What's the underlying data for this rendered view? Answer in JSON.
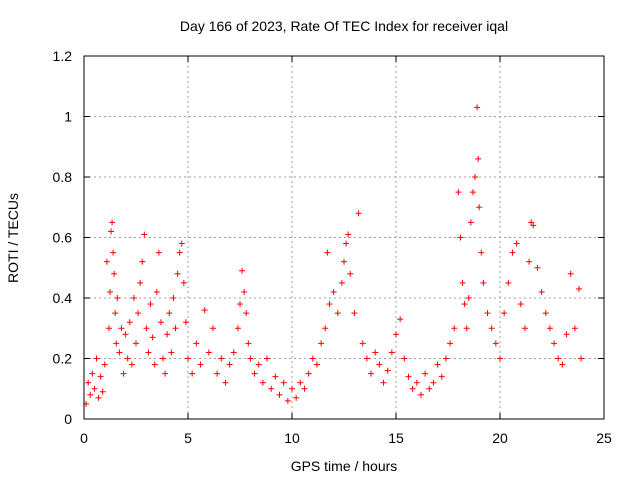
{
  "chart_data": {
    "type": "scatter",
    "title": "Day 166 of 2023, Rate Of TEC Index for receiver iqal",
    "xlabel": "GPS time / hours",
    "ylabel": "ROTI / TECUs",
    "xlim": [
      0,
      25
    ],
    "ylim": [
      0,
      1.2
    ],
    "xticks": [
      "0",
      "5",
      "10",
      "15",
      "20",
      "25"
    ],
    "yticks": [
      "0",
      "0.2",
      "0.4",
      "0.6",
      "0.8",
      "1",
      "1.2"
    ],
    "grid": true,
    "marker": "+",
    "color": "#ff0000",
    "points": [
      [
        0.1,
        0.05
      ],
      [
        0.2,
        0.12
      ],
      [
        0.3,
        0.08
      ],
      [
        0.4,
        0.15
      ],
      [
        0.5,
        0.1
      ],
      [
        0.6,
        0.2
      ],
      [
        0.7,
        0.07
      ],
      [
        0.8,
        0.14
      ],
      [
        0.9,
        0.09
      ],
      [
        1.0,
        0.18
      ],
      [
        1.1,
        0.52
      ],
      [
        1.2,
        0.3
      ],
      [
        1.25,
        0.42
      ],
      [
        1.3,
        0.62
      ],
      [
        1.35,
        0.65
      ],
      [
        1.4,
        0.55
      ],
      [
        1.45,
        0.48
      ],
      [
        1.5,
        0.35
      ],
      [
        1.55,
        0.25
      ],
      [
        1.6,
        0.4
      ],
      [
        1.7,
        0.22
      ],
      [
        1.8,
        0.3
      ],
      [
        1.9,
        0.15
      ],
      [
        2.0,
        0.28
      ],
      [
        2.1,
        0.2
      ],
      [
        2.2,
        0.32
      ],
      [
        2.3,
        0.18
      ],
      [
        2.4,
        0.4
      ],
      [
        2.5,
        0.25
      ],
      [
        2.6,
        0.35
      ],
      [
        2.7,
        0.45
      ],
      [
        2.8,
        0.52
      ],
      [
        2.9,
        0.61
      ],
      [
        3.0,
        0.3
      ],
      [
        3.1,
        0.22
      ],
      [
        3.2,
        0.38
      ],
      [
        3.3,
        0.27
      ],
      [
        3.4,
        0.18
      ],
      [
        3.5,
        0.42
      ],
      [
        3.6,
        0.55
      ],
      [
        3.7,
        0.32
      ],
      [
        3.8,
        0.2
      ],
      [
        3.9,
        0.15
      ],
      [
        4.0,
        0.28
      ],
      [
        4.1,
        0.35
      ],
      [
        4.2,
        0.22
      ],
      [
        4.3,
        0.4
      ],
      [
        4.4,
        0.3
      ],
      [
        4.5,
        0.48
      ],
      [
        4.6,
        0.55
      ],
      [
        4.7,
        0.58
      ],
      [
        4.8,
        0.45
      ],
      [
        4.9,
        0.32
      ],
      [
        5.0,
        0.2
      ],
      [
        5.2,
        0.15
      ],
      [
        5.4,
        0.25
      ],
      [
        5.6,
        0.18
      ],
      [
        5.8,
        0.36
      ],
      [
        6.0,
        0.22
      ],
      [
        6.2,
        0.3
      ],
      [
        6.4,
        0.15
      ],
      [
        6.6,
        0.2
      ],
      [
        6.8,
        0.12
      ],
      [
        7.0,
        0.18
      ],
      [
        7.2,
        0.22
      ],
      [
        7.4,
        0.3
      ],
      [
        7.5,
        0.38
      ],
      [
        7.6,
        0.49
      ],
      [
        7.7,
        0.42
      ],
      [
        7.8,
        0.35
      ],
      [
        7.9,
        0.25
      ],
      [
        8.0,
        0.2
      ],
      [
        8.2,
        0.15
      ],
      [
        8.4,
        0.18
      ],
      [
        8.6,
        0.12
      ],
      [
        8.8,
        0.2
      ],
      [
        9.0,
        0.1
      ],
      [
        9.2,
        0.14
      ],
      [
        9.4,
        0.08
      ],
      [
        9.6,
        0.12
      ],
      [
        9.8,
        0.06
      ],
      [
        10.0,
        0.1
      ],
      [
        10.2,
        0.07
      ],
      [
        10.4,
        0.12
      ],
      [
        10.6,
        0.1
      ],
      [
        10.8,
        0.15
      ],
      [
        11.0,
        0.2
      ],
      [
        11.2,
        0.18
      ],
      [
        11.4,
        0.25
      ],
      [
        11.6,
        0.3
      ],
      [
        11.7,
        0.55
      ],
      [
        11.8,
        0.38
      ],
      [
        12.0,
        0.42
      ],
      [
        12.2,
        0.35
      ],
      [
        12.4,
        0.45
      ],
      [
        12.5,
        0.52
      ],
      [
        12.6,
        0.58
      ],
      [
        12.7,
        0.61
      ],
      [
        12.8,
        0.48
      ],
      [
        13.0,
        0.35
      ],
      [
        13.2,
        0.68
      ],
      [
        13.4,
        0.25
      ],
      [
        13.6,
        0.2
      ],
      [
        13.8,
        0.15
      ],
      [
        14.0,
        0.22
      ],
      [
        14.2,
        0.18
      ],
      [
        14.4,
        0.12
      ],
      [
        14.6,
        0.16
      ],
      [
        14.8,
        0.22
      ],
      [
        15.0,
        0.28
      ],
      [
        15.2,
        0.33
      ],
      [
        15.4,
        0.2
      ],
      [
        15.6,
        0.14
      ],
      [
        15.8,
        0.1
      ],
      [
        16.0,
        0.12
      ],
      [
        16.2,
        0.08
      ],
      [
        16.4,
        0.15
      ],
      [
        16.6,
        0.1
      ],
      [
        16.8,
        0.12
      ],
      [
        17.0,
        0.18
      ],
      [
        17.2,
        0.14
      ],
      [
        17.4,
        0.2
      ],
      [
        17.6,
        0.25
      ],
      [
        17.8,
        0.3
      ],
      [
        18.0,
        0.75
      ],
      [
        18.1,
        0.6
      ],
      [
        18.2,
        0.45
      ],
      [
        18.3,
        0.38
      ],
      [
        18.4,
        0.3
      ],
      [
        18.5,
        0.4
      ],
      [
        18.6,
        0.65
      ],
      [
        18.7,
        0.75
      ],
      [
        18.8,
        0.8
      ],
      [
        18.9,
        1.03
      ],
      [
        18.95,
        0.86
      ],
      [
        19.0,
        0.7
      ],
      [
        19.1,
        0.55
      ],
      [
        19.2,
        0.45
      ],
      [
        19.4,
        0.35
      ],
      [
        19.6,
        0.3
      ],
      [
        19.8,
        0.25
      ],
      [
        20.0,
        0.2
      ],
      [
        20.2,
        0.35
      ],
      [
        20.4,
        0.45
      ],
      [
        20.6,
        0.55
      ],
      [
        20.8,
        0.58
      ],
      [
        21.0,
        0.38
      ],
      [
        21.2,
        0.3
      ],
      [
        21.4,
        0.52
      ],
      [
        21.5,
        0.65
      ],
      [
        21.6,
        0.64
      ],
      [
        21.8,
        0.5
      ],
      [
        22.0,
        0.42
      ],
      [
        22.2,
        0.35
      ],
      [
        22.4,
        0.3
      ],
      [
        22.6,
        0.25
      ],
      [
        22.8,
        0.2
      ],
      [
        23.0,
        0.18
      ],
      [
        23.2,
        0.28
      ],
      [
        23.4,
        0.48
      ],
      [
        23.6,
        0.3
      ],
      [
        23.8,
        0.43
      ],
      [
        23.9,
        0.2
      ]
    ]
  }
}
